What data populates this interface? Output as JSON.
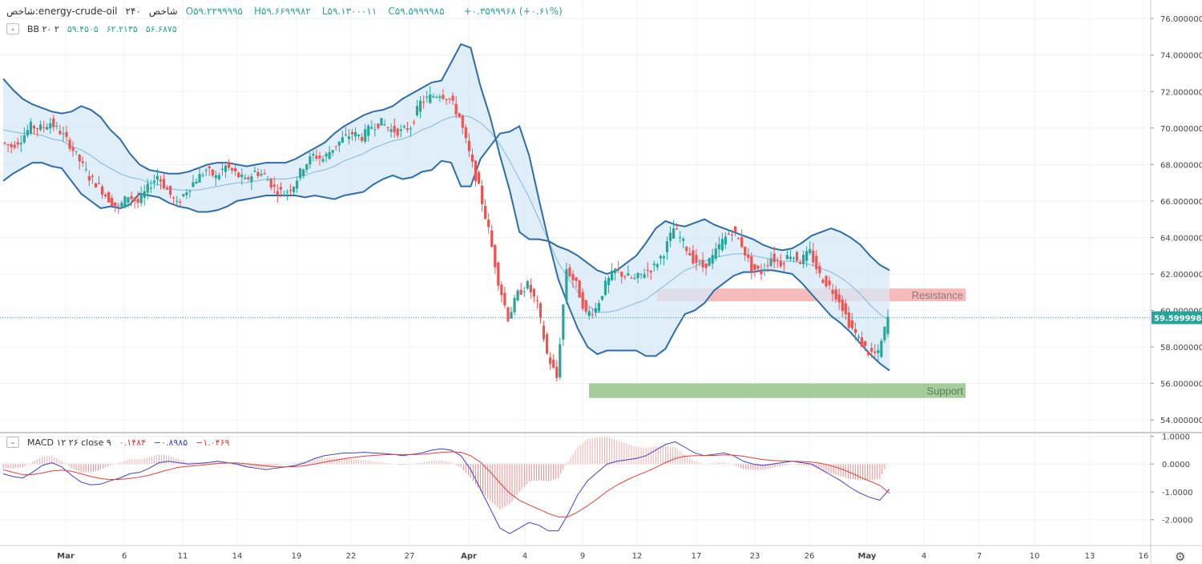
{
  "header": {
    "symbol": "شاخص:energy-crude-oil",
    "timeframe": "۲۴۰",
    "exchange": "شاخص",
    "ohlc": [
      {
        "key": "O",
        "value": "۵۹.۲۲۹۹۹۹۵"
      },
      {
        "key": "H",
        "value": "۵۹.۶۶۹۹۹۸۲"
      },
      {
        "key": "L",
        "value": "۵۹.۱۳۰۰۰۱۱"
      },
      {
        "key": "C",
        "value": "۵۹.۵۹۹۹۹۸۵"
      }
    ],
    "change": "+۰.۳۵۹۹۹۶۸ (+۰.۶۱%)"
  },
  "bb_legend": {
    "name": "BB ۲۰ ۲",
    "basis": "۵۹.۴۵۰۵",
    "upper": "۶۲.۲۱۳۵",
    "lower": "۵۶.۶۸۷۵"
  },
  "macd_legend": {
    "name": "MACD ۱۲ ۲۶ close ۹",
    "hist": "۰.۱۴۸۴",
    "macd": "−۰.۸۹۸۵",
    "signal": "−۱.۰۴۶۹"
  },
  "colors": {
    "up": "#26a69a",
    "down": "#ef5350",
    "bb_band": "#2e6da8",
    "bb_fill": "#d6e8f7",
    "bb_basis": "#7fb7e3",
    "macd": "#3b43c6",
    "signal": "#e0403a",
    "resistance": "#f4a3a3",
    "support": "#8fbf7f",
    "price_tag": "#26a69a"
  },
  "settings_icon": "gear-icon",
  "chart_data": [
    {
      "type": "candlestick",
      "title": "",
      "price_axis": {
        "ticks": [
          "76.0000000",
          "74.0000000",
          "72.0000000",
          "70.0000000",
          "68.0000000",
          "66.0000000",
          "64.0000000",
          "62.0000000",
          "60.0000000",
          "58.0000000",
          "56.0000000",
          "54.0000000"
        ],
        "ylim": [
          53.3,
          76.8
        ]
      },
      "time_axis": {
        "ticks": [
          "Mar",
          "6",
          "11",
          "14",
          "19",
          "22",
          "27",
          "Apr",
          "4",
          "9",
          "12",
          "17",
          "23",
          "26",
          "May",
          "4",
          "7",
          "10",
          "13",
          "16"
        ]
      },
      "last_price": {
        "value": 59.5999985,
        "label": "59.5999985"
      },
      "zones": [
        {
          "name": "Resistance",
          "low": 60.5,
          "high": 61.2
        },
        {
          "name": "Support",
          "low": 55.2,
          "high": 56.0
        }
      ],
      "series_close": [
        69.2,
        69.0,
        69.4,
        70.1,
        70.0,
        70.3,
        69.8,
        69.1,
        68.2,
        67.3,
        66.8,
        66.1,
        65.6,
        66.3,
        65.9,
        66.7,
        67.4,
        66.6,
        65.8,
        66.6,
        67.2,
        67.7,
        67.3,
        67.9,
        67.5,
        67.1,
        67.6,
        67.4,
        66.7,
        66.4,
        66.9,
        67.9,
        68.5,
        68.3,
        68.9,
        69.4,
        69.7,
        69.5,
        70.1,
        70.3,
        69.9,
        69.8,
        70.1,
        71.4,
        71.7,
        71.9,
        71.6,
        70.6,
        68.6,
        66.7,
        64.4,
        61.6,
        59.6,
        60.9,
        61.4,
        60.3,
        57.6,
        56.3,
        62.3,
        61.4,
        59.8,
        60.1,
        61.4,
        62.2,
        61.9,
        61.7,
        62.1,
        62.4,
        63.2,
        64.5,
        63.7,
        62.8,
        62.4,
        62.9,
        63.8,
        64.4,
        63.6,
        62.3,
        62.1,
        62.9,
        62.6,
        63.1,
        62.7,
        63.2,
        61.9,
        61.3,
        60.6,
        59.3,
        58.4,
        57.7,
        57.6,
        59.6
      ],
      "bb_basis": [
        69.9,
        69.8,
        69.7,
        69.7,
        69.6,
        69.4,
        69.3,
        69.0,
        68.8,
        68.5,
        68.1,
        67.8,
        67.5,
        67.3,
        67.2,
        67.0,
        66.9,
        66.7,
        66.6,
        66.6,
        66.6,
        66.7,
        66.8,
        66.9,
        67.0,
        67.0,
        67.1,
        67.2,
        67.2,
        67.2,
        67.3,
        67.4,
        67.6,
        67.7,
        67.9,
        68.2,
        68.4,
        68.6,
        68.9,
        69.1,
        69.3,
        69.4,
        69.6,
        69.9,
        70.1,
        70.4,
        70.6,
        70.7,
        70.6,
        70.3,
        69.8,
        69.1,
        68.2,
        67.2,
        66.2,
        65.0,
        63.8,
        62.6,
        61.8,
        61.0,
        60.3,
        59.9,
        59.9,
        60.0,
        60.2,
        60.4,
        60.6,
        61.0,
        61.4,
        61.8,
        62.2,
        62.4,
        62.7,
        62.9,
        63.0,
        63.1,
        63.1,
        63.0,
        62.9,
        62.8,
        62.7,
        62.7,
        62.6,
        62.5,
        62.3,
        62.1,
        61.8,
        61.4,
        60.9,
        60.3,
        59.8,
        59.45
      ],
      "bb_upper": [
        72.7,
        72.1,
        71.6,
        71.3,
        71.1,
        70.9,
        70.8,
        70.9,
        71.2,
        71.0,
        70.6,
        69.9,
        69.4,
        68.6,
        68.0,
        67.7,
        67.6,
        67.5,
        67.5,
        67.6,
        67.8,
        68.0,
        68.1,
        68.1,
        68.0,
        67.9,
        68.0,
        68.1,
        68.1,
        68.1,
        68.3,
        68.6,
        68.9,
        69.2,
        69.7,
        70.1,
        70.4,
        70.7,
        70.9,
        71.0,
        71.2,
        71.6,
        71.9,
        72.2,
        72.5,
        72.6,
        73.6,
        74.6,
        74.4,
        72.3,
        70.6,
        68.5,
        66.6,
        64.3,
        63.9,
        63.9,
        63.8,
        63.5,
        63.3,
        63.0,
        62.6,
        62.2,
        62.0,
        62.2,
        62.6,
        63.0,
        63.7,
        64.5,
        64.9,
        64.7,
        64.6,
        64.8,
        65.0,
        64.7,
        64.5,
        64.3,
        64.1,
        63.9,
        63.6,
        63.4,
        63.3,
        63.4,
        63.7,
        64.1,
        64.3,
        64.5,
        64.3,
        64.0,
        63.6,
        63.0,
        62.5,
        62.2
      ],
      "bb_lower": [
        67.1,
        67.5,
        67.8,
        68.1,
        68.1,
        67.9,
        67.8,
        67.1,
        66.4,
        66.0,
        65.6,
        65.7,
        65.6,
        65.8,
        66.4,
        66.3,
        66.2,
        65.9,
        65.7,
        65.6,
        65.4,
        65.4,
        65.5,
        65.7,
        66.0,
        66.1,
        66.2,
        66.3,
        66.3,
        66.3,
        66.3,
        66.2,
        66.3,
        66.2,
        66.1,
        66.3,
        66.4,
        66.5,
        66.9,
        67.2,
        67.4,
        67.2,
        67.3,
        67.6,
        67.7,
        68.2,
        68.1,
        66.8,
        66.8,
        68.3,
        69.0,
        69.7,
        69.8,
        70.1,
        68.5,
        66.1,
        63.8,
        61.7,
        60.3,
        59.0,
        58.0,
        57.6,
        57.8,
        57.8,
        57.8,
        57.8,
        57.5,
        57.5,
        57.9,
        58.9,
        59.8,
        60.0,
        60.4,
        61.1,
        61.5,
        61.9,
        62.1,
        62.1,
        62.2,
        62.2,
        62.1,
        62.0,
        61.5,
        60.9,
        60.3,
        59.7,
        59.3,
        58.8,
        58.2,
        57.6,
        57.1,
        56.7
      ],
      "index_note": "series are sampled at ~92 evenly spaced bars spanning Mar to early May"
    },
    {
      "type": "line",
      "title": "MACD",
      "ylim": [
        -2.9,
        1.1
      ],
      "ticks": [
        "1.0000",
        "0.0000",
        "-1.0000",
        "-2.0000"
      ],
      "series": [
        {
          "name": "MACD",
          "values": [
            -0.35,
            -0.45,
            -0.5,
            -0.3,
            -0.05,
            0.05,
            -0.1,
            -0.4,
            -0.65,
            -0.75,
            -0.72,
            -0.6,
            -0.5,
            -0.35,
            -0.3,
            -0.15,
            0.05,
            0.1,
            0.05,
            0.0,
            0.02,
            0.05,
            0.1,
            0.05,
            0.0,
            -0.1,
            -0.15,
            -0.2,
            -0.15,
            -0.1,
            -0.05,
            0.05,
            0.2,
            0.3,
            0.35,
            0.4,
            0.4,
            0.42,
            0.4,
            0.38,
            0.35,
            0.3,
            0.35,
            0.4,
            0.5,
            0.55,
            0.5,
            0.3,
            -0.2,
            -0.9,
            -1.6,
            -2.3,
            -2.5,
            -2.3,
            -2.1,
            -2.2,
            -2.4,
            -2.4,
            -1.8,
            -1.1,
            -0.6,
            -0.3,
            0.0,
            0.1,
            0.15,
            0.2,
            0.3,
            0.5,
            0.7,
            0.8,
            0.6,
            0.4,
            0.3,
            0.35,
            0.4,
            0.3,
            0.1,
            0.0,
            -0.05,
            0.0,
            0.05,
            0.1,
            0.05,
            0.0,
            -0.2,
            -0.4,
            -0.6,
            -0.85,
            -1.05,
            -1.2,
            -1.3,
            -0.9
          ]
        },
        {
          "name": "Signal",
          "values": [
            -0.2,
            -0.3,
            -0.38,
            -0.38,
            -0.32,
            -0.25,
            -0.22,
            -0.26,
            -0.35,
            -0.45,
            -0.52,
            -0.56,
            -0.55,
            -0.52,
            -0.47,
            -0.4,
            -0.3,
            -0.2,
            -0.12,
            -0.08,
            -0.05,
            -0.02,
            0.02,
            0.04,
            0.04,
            0.01,
            -0.03,
            -0.07,
            -0.1,
            -0.1,
            -0.09,
            -0.06,
            0.0,
            0.07,
            0.13,
            0.19,
            0.24,
            0.28,
            0.31,
            0.33,
            0.34,
            0.34,
            0.34,
            0.35,
            0.38,
            0.42,
            0.44,
            0.42,
            0.3,
            0.06,
            -0.28,
            -0.68,
            -1.05,
            -1.3,
            -1.47,
            -1.62,
            -1.78,
            -1.9,
            -1.9,
            -1.72,
            -1.5,
            -1.25,
            -0.98,
            -0.76,
            -0.58,
            -0.42,
            -0.28,
            -0.12,
            0.05,
            0.2,
            0.28,
            0.3,
            0.3,
            0.31,
            0.33,
            0.32,
            0.28,
            0.22,
            0.16,
            0.13,
            0.11,
            0.1,
            0.09,
            0.07,
            0.02,
            -0.06,
            -0.17,
            -0.31,
            -0.47,
            -0.62,
            -0.76,
            -1.05
          ]
        }
      ]
    }
  ]
}
